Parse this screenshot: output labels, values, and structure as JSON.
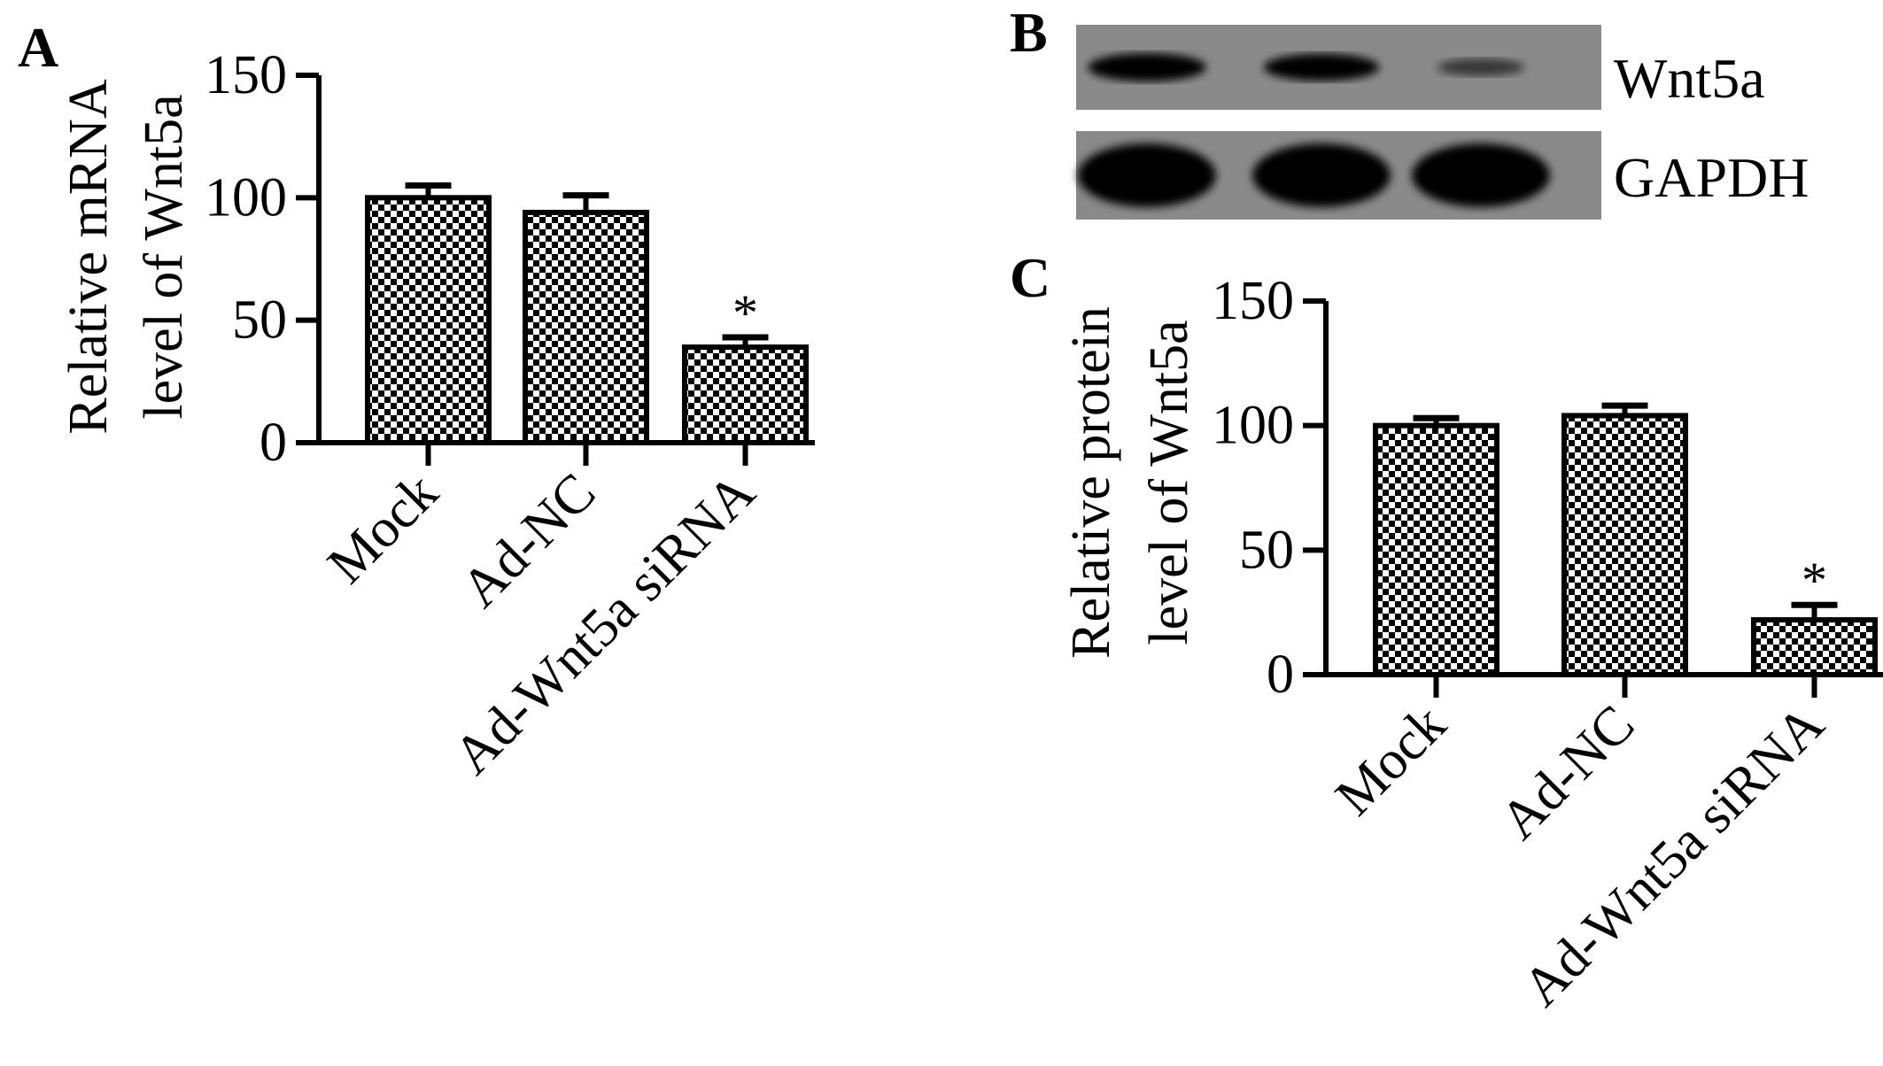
{
  "panel_labels": {
    "a": "A",
    "b": "B",
    "c": "C"
  },
  "blot": {
    "rows": [
      {
        "label": "Wnt5a",
        "band_intensity": [
          0.9,
          0.85,
          0.35
        ]
      },
      {
        "label": "GAPDH",
        "band_intensity": [
          1.0,
          1.0,
          1.0
        ]
      }
    ]
  },
  "chart_data": [
    {
      "panel": "A",
      "type": "bar",
      "categories": [
        "Mock",
        "Ad-NC",
        "Ad-Wnt5a siRNA"
      ],
      "values": [
        100,
        94,
        39
      ],
      "errors": [
        5,
        7,
        4
      ],
      "significance": [
        "",
        "",
        "*"
      ],
      "ylabel": "Relative mRNA level of Wnt5a",
      "ylabel_lines": [
        "Relative mRNA",
        "level of Wnt5a"
      ],
      "ylim": [
        0,
        150
      ],
      "yticks": [
        0,
        50,
        100,
        150
      ],
      "ytick_labels": [
        "0",
        "50",
        "100",
        "150"
      ],
      "legend": "none",
      "grid": false,
      "pattern": "checkerboard"
    },
    {
      "panel": "C",
      "type": "bar",
      "categories": [
        "Mock",
        "Ad-NC",
        "Ad-Wnt5a siRNA"
      ],
      "values": [
        100,
        104,
        22
      ],
      "errors": [
        3,
        4,
        6
      ],
      "significance": [
        "",
        "",
        "*"
      ],
      "ylabel": "Relative protein level of Wnt5a",
      "ylabel_lines": [
        "Relative protein",
        "level of Wnt5a"
      ],
      "ylim": [
        0,
        150
      ],
      "yticks": [
        0,
        50,
        100,
        150
      ],
      "ytick_labels": [
        "0",
        "50",
        "100",
        "150"
      ],
      "legend": "none",
      "grid": false,
      "pattern": "checkerboard"
    }
  ]
}
